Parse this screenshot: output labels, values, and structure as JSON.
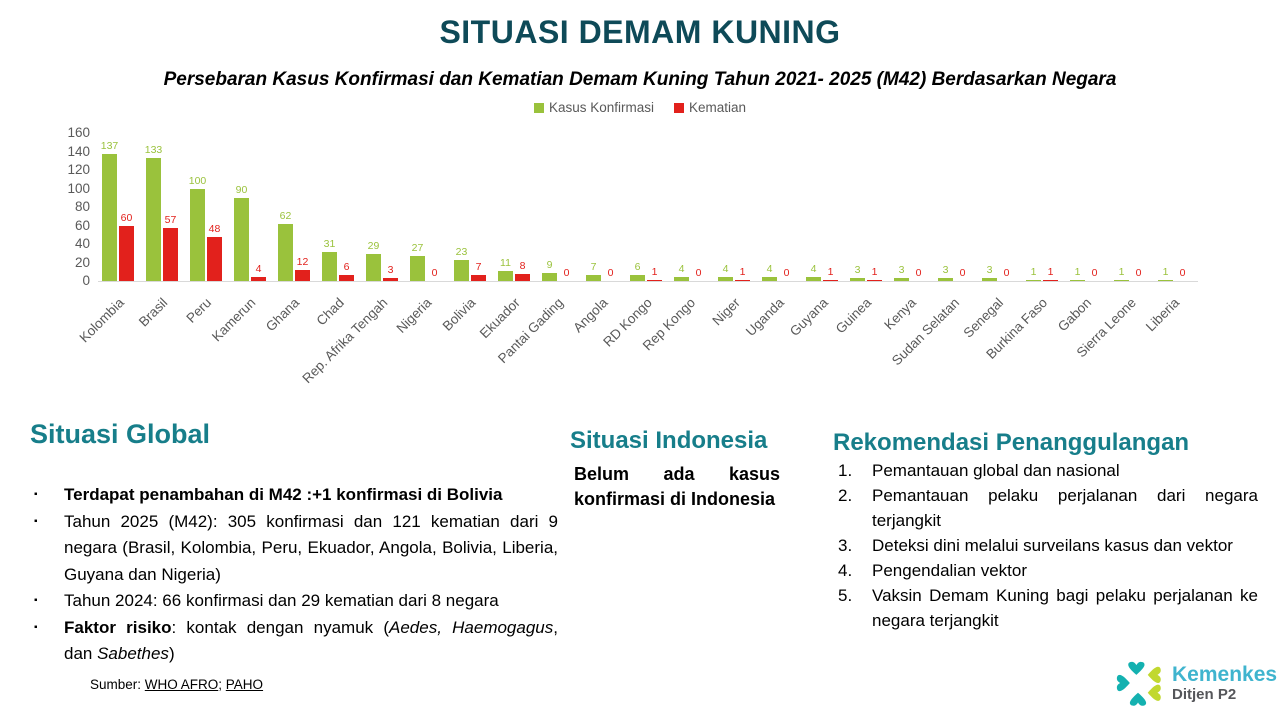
{
  "title": "SITUASI DEMAM KUNING",
  "subtitle": "Persebaran Kasus Konfirmasi dan Kematian Demam Kuning Tahun 2021- 2025 (M42) Berdasarkan Negara",
  "colors": {
    "title_teal": "#0E4A58",
    "heading_teal": "#177E8A",
    "confirmed_green": "#9AC23C",
    "death_red": "#E2211C",
    "axis_gray": "#595959",
    "baseline_gray": "#D9D9D9"
  },
  "chart_data": {
    "type": "bar",
    "title": "Persebaran Kasus Konfirmasi dan Kematian Demam Kuning Tahun 2021- 2025 (M42) Berdasarkan Negara",
    "categories": [
      "Kolombia",
      "Brasil",
      "Peru",
      "Kamerun",
      "Ghana",
      "Chad",
      "Rep. Afrika Tengah",
      "Nigeria",
      "Bolivia",
      "Ekuador",
      "Pantai Gading",
      "Angola",
      "RD Kongo",
      "Rep Kongo",
      "Niger",
      "Uganda",
      "Guyana",
      "Guinea",
      "Kenya",
      "Sudan Selatan",
      "Senegal",
      "Burkina Faso",
      "Gabon",
      "Sierra Leone",
      "Liberia"
    ],
    "series": [
      {
        "name": "Kasus Konfirmasi",
        "color": "#9AC23C",
        "values": [
          137,
          133,
          100,
          90,
          62,
          31,
          29,
          27,
          23,
          11,
          9,
          7,
          6,
          4,
          4,
          4,
          4,
          3,
          3,
          3,
          3,
          1,
          1,
          1,
          1
        ]
      },
      {
        "name": "Kematian",
        "color": "#E2211C",
        "values": [
          60,
          57,
          48,
          4,
          12,
          6,
          3,
          0,
          7,
          8,
          0,
          0,
          1,
          0,
          1,
          0,
          1,
          1,
          0,
          0,
          0,
          1,
          0,
          0,
          0
        ]
      }
    ],
    "ylim": [
      0,
      160
    ],
    "yticks": [
      160,
      140,
      120,
      100,
      80,
      60,
      40,
      20,
      0
    ],
    "grid": false,
    "legend_position": "top",
    "value_labels": true
  },
  "sections": {
    "global": {
      "heading": "Situasi Global",
      "bullets": [
        {
          "runs": [
            {
              "t": "Terdapat penambahan di M42 :+1 konfirmasi di Bolivia",
              "b": true
            }
          ]
        },
        {
          "runs": [
            {
              "t": "Tahun 2025 (M42): 305 konfirmasi dan 121 kematian dari 9 negara (Brasil, Kolombia, Peru, Ekuador, Angola, Bolivia, Liberia, Guyana dan Nigeria)"
            }
          ]
        },
        {
          "runs": [
            {
              "t": "Tahun 2024: 66 konfirmasi dan 29 kematian dari 8 negara"
            }
          ]
        },
        {
          "runs": [
            {
              "t": "Faktor risiko",
              "b": true
            },
            {
              "t": ": kontak dengan nyamuk ("
            },
            {
              "t": "Aedes, Haemogagus",
              "i": true
            },
            {
              "t": ", dan "
            },
            {
              "t": "Sabethes",
              "i": true
            },
            {
              "t": ")"
            }
          ]
        }
      ]
    },
    "indonesia": {
      "heading": "Situasi Indonesia",
      "text": "Belum ada kasus konfirmasi di Indonesia"
    },
    "rekomendasi": {
      "heading": "Rekomendasi Penanggulangan",
      "items": [
        "Pemantauan global dan nasional",
        "Pemantauan pelaku perjalanan dari negara terjangkit",
        "Deteksi dini melalui surveilans kasus dan vektor",
        "Pengendalian vektor",
        "Vaksin Demam Kuning bagi pelaku perjalanan ke negara terjangkit"
      ]
    }
  },
  "source": {
    "label": "Sumber: ",
    "links": [
      {
        "text": "WHO AFRO"
      },
      {
        "text": "PAHO"
      }
    ],
    "separator": "; "
  },
  "logo": {
    "name": "Kemenkes",
    "subname": "Ditjen P2"
  }
}
